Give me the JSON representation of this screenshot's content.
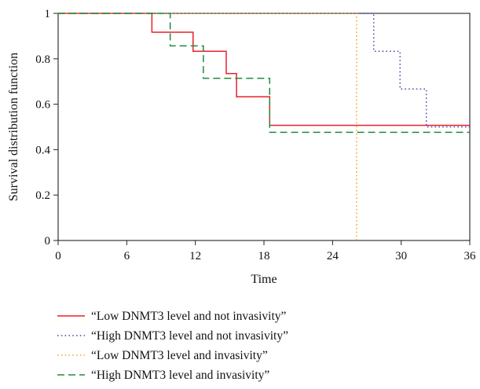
{
  "chart_data": {
    "type": "line",
    "subtype": "step",
    "title": "",
    "xlabel": "Time",
    "ylabel": "Survival distribution function",
    "xlim": [
      0,
      36
    ],
    "ylim": [
      0,
      1
    ],
    "xticks": [
      0,
      6,
      12,
      18,
      24,
      30,
      36
    ],
    "yticks": [
      0,
      0.2,
      0.4,
      0.6,
      0.8,
      1
    ],
    "xtick_labels": [
      "0",
      "6",
      "12",
      "18",
      "24",
      "30",
      "36"
    ],
    "ytick_labels": [
      "0",
      "0.2",
      "0.4",
      "0.6",
      "0.8",
      "1"
    ],
    "grid": false,
    "legend_position": "bottom",
    "series": [
      {
        "name": "“Low DNMT3 level and not invasivity”",
        "color": "#e8202a",
        "line_style": "solid",
        "x": [
          0,
          8.2,
          11.8,
          14.7,
          15.6,
          18.5,
          36
        ],
        "y": [
          1,
          0.917,
          0.833,
          0.735,
          0.633,
          0.507,
          0.507
        ]
      },
      {
        "name": "“High DNMT3 level and not invasivity”",
        "color": "#4b4ba8",
        "line_style": "dotted",
        "x": [
          0,
          27.6,
          29.9,
          32.2,
          36
        ],
        "y": [
          1,
          0.833,
          0.667,
          0.5,
          0.5
        ]
      },
      {
        "name": "“Low DNMT3 level and invasivity”",
        "color": "#f5a623",
        "line_style": "dotted",
        "x": [
          0,
          26.1,
          26.1
        ],
        "y": [
          1,
          1,
          0
        ]
      },
      {
        "name": "“High DNMT3 level and invasivity”",
        "color": "#1f8a3e",
        "line_style": "dashed",
        "x": [
          0,
          9.8,
          12.7,
          18.5,
          36
        ],
        "y": [
          1,
          0.857,
          0.714,
          0.476,
          0.476
        ]
      }
    ]
  }
}
